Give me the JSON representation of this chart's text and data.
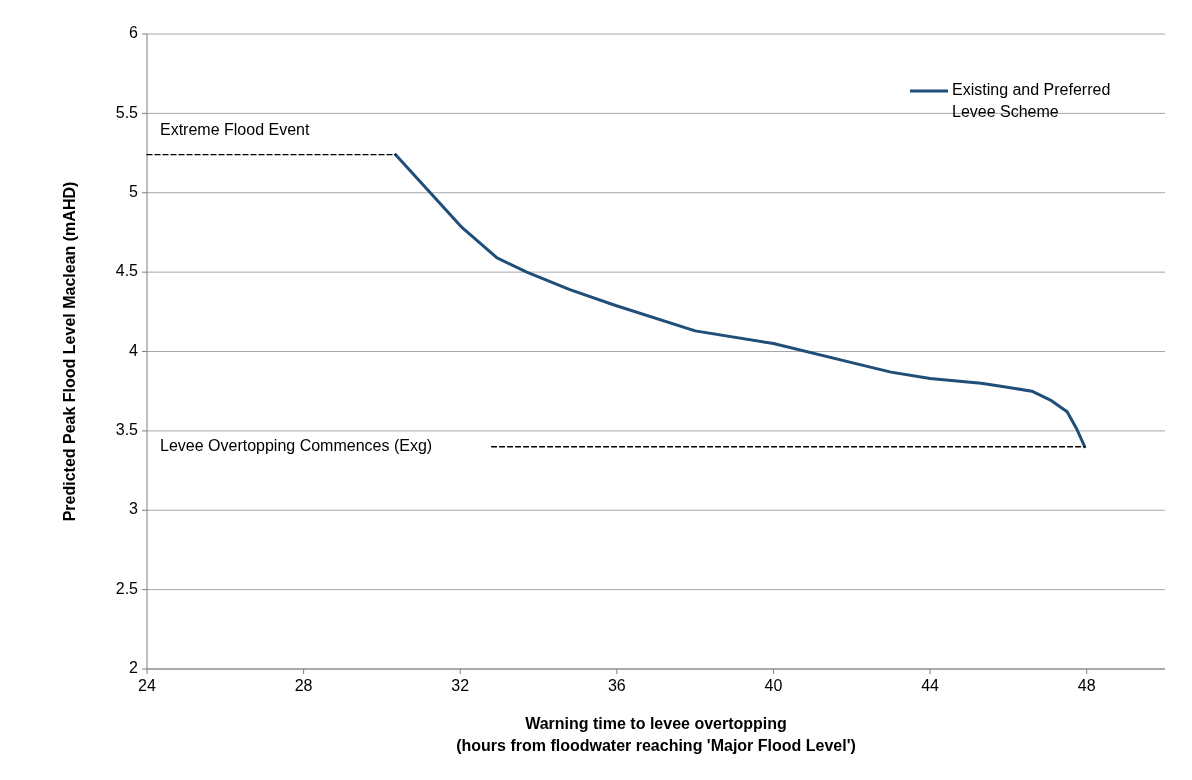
{
  "chart_data": {
    "type": "line",
    "xlabel": "Warning time to levee overtopping\n(hours from floodwater reaching 'Major Flood Level')",
    "ylabel": "Predicted Peak Flood Level Maclean (mAHD)",
    "xlim": [
      24,
      50
    ],
    "xticks": [
      24,
      28,
      32,
      36,
      40,
      44,
      48
    ],
    "ylim": [
      2,
      6
    ],
    "yticks": [
      2,
      2.5,
      3,
      3.5,
      4,
      4.5,
      5,
      5.5,
      6
    ],
    "grid": "y",
    "legend": "top right",
    "series": [
      {
        "name": "Existing and Preferred Levee Scheme",
        "color": "#1f4e79",
        "line_style": "solid",
        "x": [
          30.35,
          31.16,
          32.05,
          32.94,
          33.7,
          34.8,
          35.97,
          38.0,
          40.0,
          42.0,
          43.0,
          44.0,
          45.3,
          45.85,
          46.6,
          47.1,
          47.5,
          47.75,
          47.95
        ],
        "values": [
          5.24,
          5.02,
          4.78,
          4.59,
          4.5,
          4.39,
          4.29,
          4.13,
          4.05,
          3.93,
          3.87,
          3.83,
          3.8,
          3.78,
          3.75,
          3.69,
          3.62,
          3.51,
          3.4
        ]
      },
      {
        "color": "#000000",
        "line_style": "dashed",
        "x": [
          24,
          30.35
        ],
        "values": [
          5.24,
          5.24
        ]
      },
      {
        "color": "#000000",
        "line_style": "dashed",
        "x": [
          32.8,
          47.95
        ],
        "values": [
          3.4,
          3.4
        ]
      }
    ],
    "annotations": [
      "Extreme Flood Event",
      "Levee Overtopping Commences (Exg)"
    ]
  }
}
